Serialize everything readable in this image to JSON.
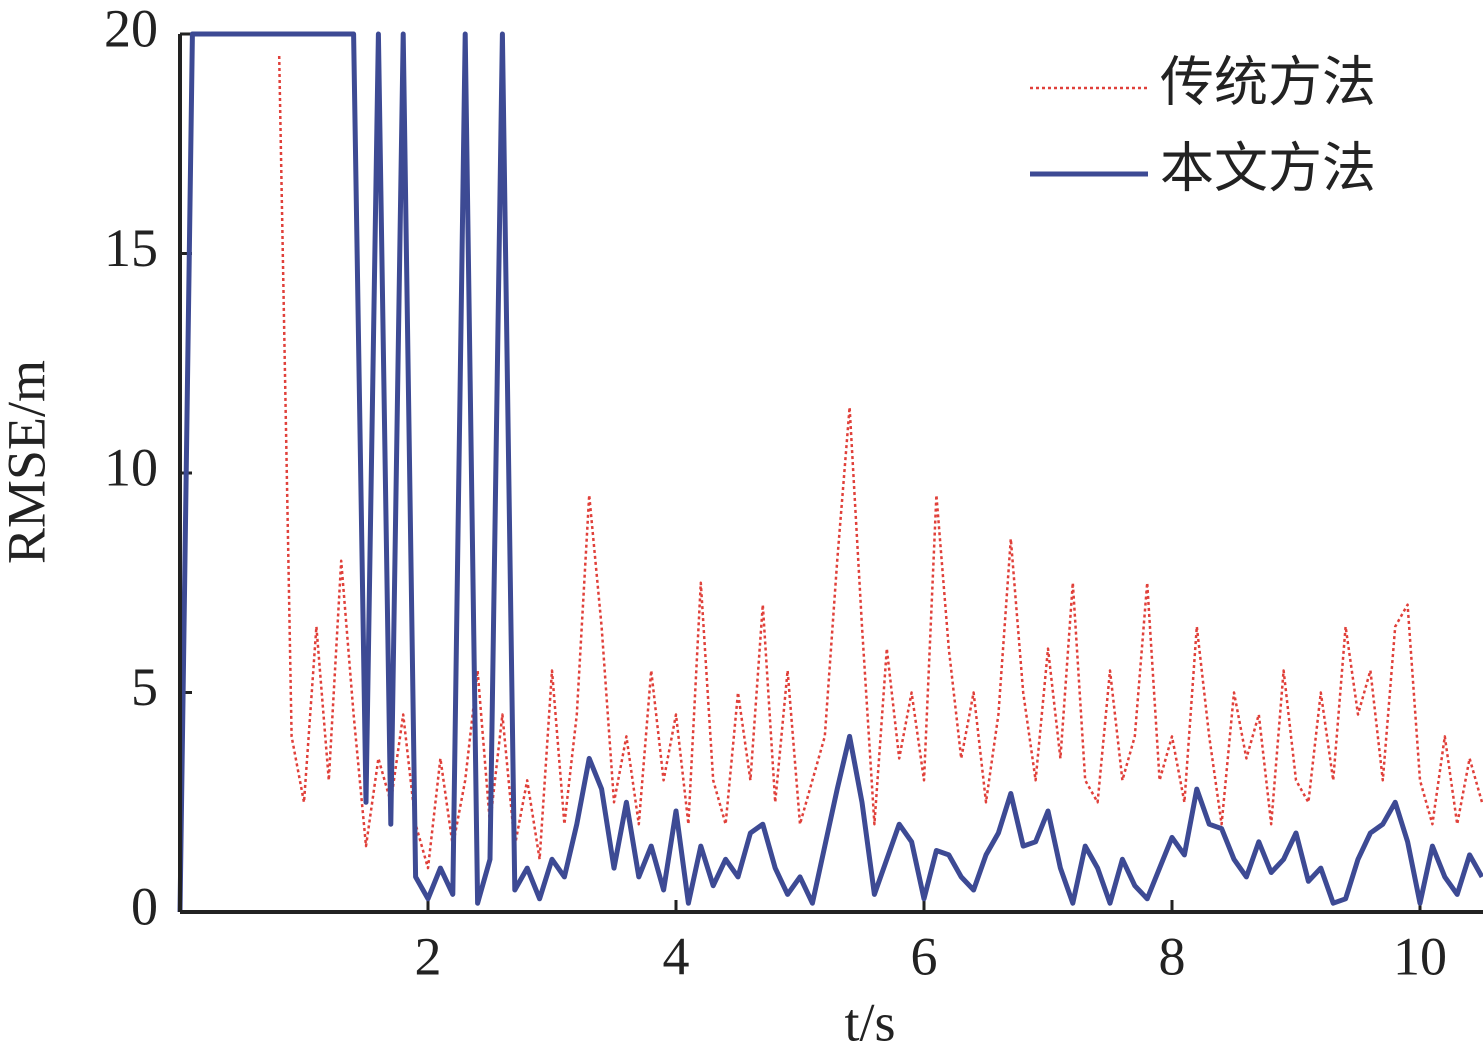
{
  "chart_data": {
    "type": "line",
    "xlabel": "t/s",
    "ylabel": "RMSE/m",
    "x": [
      0,
      0.1,
      0.2,
      0.3,
      0.4,
      0.5,
      0.6,
      0.7,
      0.8,
      0.9,
      1,
      1.1,
      1.2,
      1.3,
      1.4,
      1.5,
      1.6,
      1.7,
      1.8,
      1.9,
      2,
      2.1,
      2.2,
      2.3,
      2.4,
      2.5,
      2.6,
      2.7,
      2.8,
      2.9,
      3,
      3.1,
      3.2,
      3.3,
      3.4,
      3.5,
      3.6,
      3.7,
      3.8,
      3.9,
      4,
      4.1,
      4.2,
      4.3,
      4.4,
      4.5,
      4.6,
      4.7,
      4.8,
      4.9,
      5,
      5.1,
      5.2,
      5.3,
      5.4,
      5.5,
      5.6,
      5.7,
      5.8,
      5.9,
      6,
      6.1,
      6.2,
      6.3,
      6.4,
      6.5,
      6.6,
      6.7,
      6.8,
      6.9,
      7,
      7.1,
      7.2,
      7.3,
      7.4,
      7.5,
      7.6,
      7.7,
      7.8,
      7.9,
      8,
      8.1,
      8.2,
      8.3,
      8.4,
      8.5,
      8.6,
      8.7,
      8.8,
      8.9,
      9,
      9.1,
      9.2,
      9.3,
      9.4,
      9.5,
      9.6,
      9.7,
      9.8,
      9.9,
      10,
      10.1,
      10.2,
      10.3,
      10.4,
      10.5
    ],
    "series": [
      {
        "name": "传统方法",
        "color": "#e0403a",
        "style": "dotted",
        "values": [
          null,
          null,
          null,
          null,
          null,
          null,
          null,
          null,
          19.5,
          4,
          2.5,
          6.5,
          3,
          8,
          4.5,
          1.5,
          3.5,
          2.5,
          4.5,
          2,
          1,
          3.5,
          1.5,
          3,
          5.5,
          2,
          4.5,
          1.5,
          3,
          1.2,
          5.5,
          2,
          4.5,
          9.5,
          6.5,
          2.5,
          4,
          2,
          5.5,
          3,
          4.5,
          2,
          7.5,
          3,
          2,
          5,
          3,
          7,
          2.5,
          5.5,
          2,
          3,
          4,
          8,
          11.5,
          6.5,
          2,
          6,
          3.5,
          5,
          3,
          9.5,
          6,
          3.5,
          5,
          2.5,
          4.5,
          8.5,
          5,
          3,
          6,
          3.5,
          7.5,
          3,
          2.5,
          5.5,
          3,
          4,
          7.5,
          3,
          4,
          2.5,
          6.5,
          4,
          2,
          5,
          3.5,
          4.5,
          2,
          5.5,
          3,
          2.5,
          5,
          3,
          6.5,
          4.5,
          5.5,
          3,
          6.5,
          7,
          3,
          2,
          4,
          2,
          3.5,
          2.5
        ]
      },
      {
        "name": "本文方法",
        "color": "#3d4a94",
        "style": "solid",
        "values": [
          0,
          20,
          20,
          20,
          20,
          20,
          20,
          20,
          20,
          20,
          20,
          20,
          20,
          20,
          20,
          2.5,
          20,
          2,
          20,
          0.8,
          0.3,
          1,
          0.4,
          20,
          0.2,
          1.2,
          20,
          0.5,
          1,
          0.3,
          1.2,
          0.8,
          2,
          3.5,
          2.8,
          1,
          2.5,
          0.8,
          1.5,
          0.5,
          2.3,
          0.2,
          1.5,
          0.6,
          1.2,
          0.8,
          1.8,
          2,
          1,
          0.4,
          0.8,
          0.2,
          1.5,
          2.8,
          4,
          2.5,
          0.4,
          1.2,
          2,
          1.6,
          0.3,
          1.4,
          1.3,
          0.8,
          0.5,
          1.3,
          1.8,
          2.7,
          1.5,
          1.6,
          2.3,
          1,
          0.2,
          1.5,
          1,
          0.2,
          1.2,
          0.6,
          0.3,
          1,
          1.7,
          1.3,
          2.8,
          2,
          1.9,
          1.2,
          0.8,
          1.6,
          0.9,
          1.2,
          1.8,
          0.7,
          1,
          0.2,
          0.3,
          1.2,
          1.8,
          2,
          2.5,
          1.6,
          0.2,
          1.5,
          0.8,
          0.4,
          1.3,
          0.8
        ]
      }
    ],
    "xlim": [
      0,
      10.5
    ],
    "ylim": [
      0,
      20
    ],
    "xticks": [
      2,
      4,
      6,
      8,
      10
    ],
    "yticks": [
      0,
      5,
      10,
      15,
      20
    ],
    "legend": "upper right",
    "grid": false
  }
}
